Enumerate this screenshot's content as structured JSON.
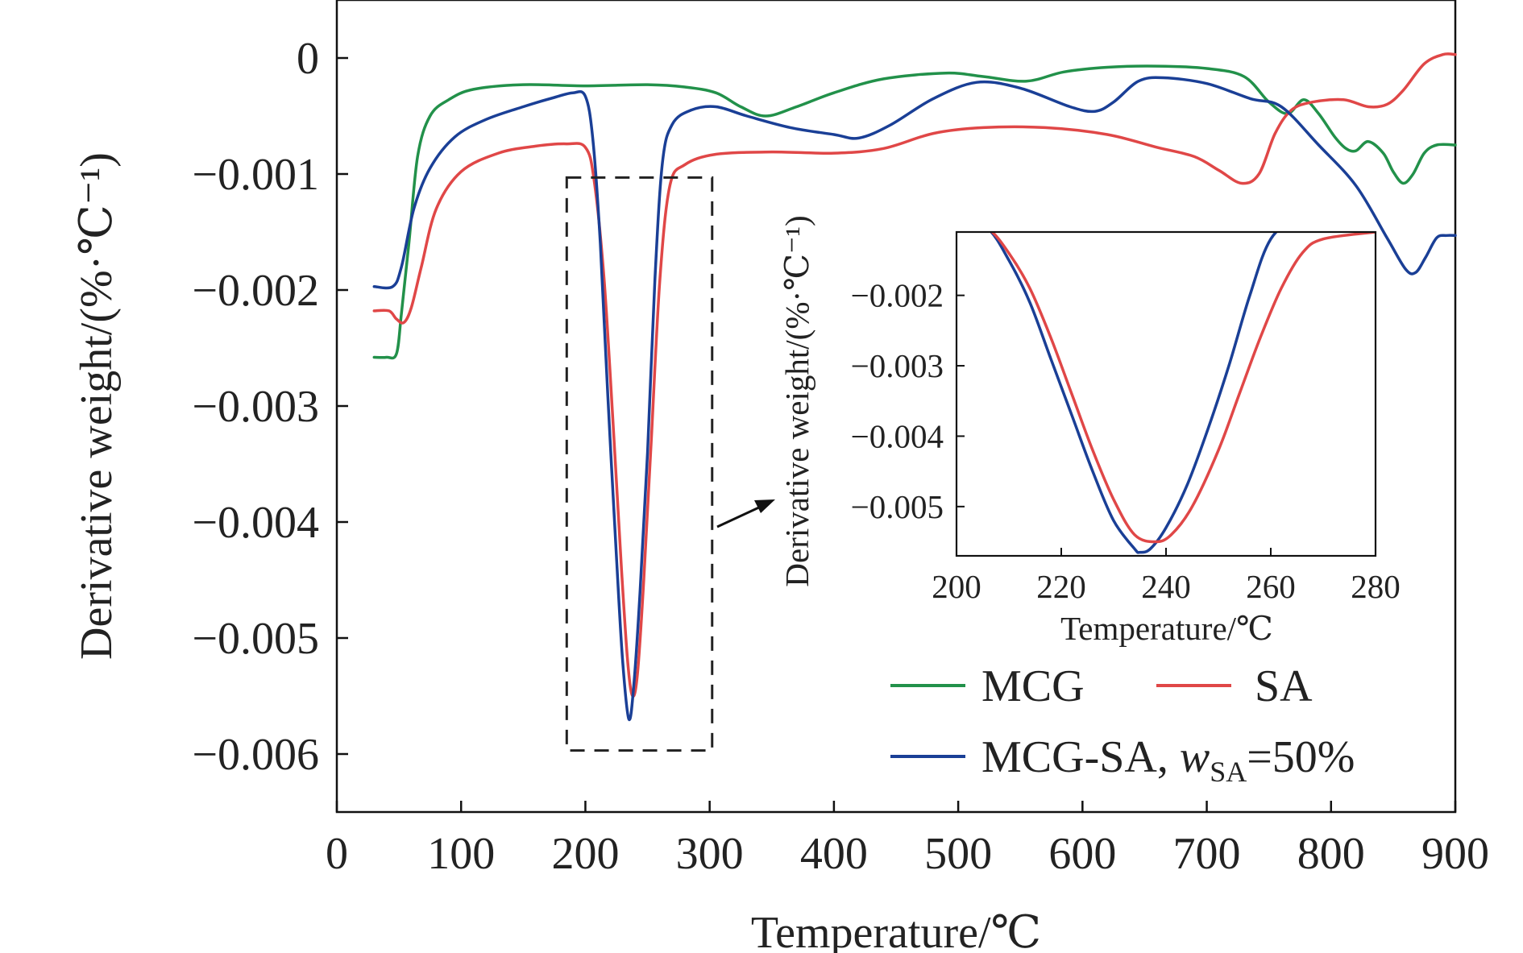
{
  "chart_data": [
    {
      "type": "line",
      "xlabel": "Temperature/℃",
      "ylabel": "Derivative weight/(%·℃⁻¹)",
      "xlim": [
        0,
        900
      ],
      "ylim": [
        -0.0065,
        0.0005
      ],
      "xticks": [
        0,
        100,
        200,
        300,
        400,
        500,
        600,
        700,
        800,
        900
      ],
      "yticks": [
        0,
        -0.001,
        -0.002,
        -0.003,
        -0.004,
        -0.005,
        -0.006
      ],
      "ytick_labels": [
        "0",
        "−0.001",
        "−0.002",
        "−0.003",
        "−0.004",
        "−0.005",
        "−0.006"
      ],
      "legend_position": "bottom-right",
      "series": [
        {
          "name": "MCG",
          "color": "#22914a",
          "points": [
            [
              30,
              -0.00258
            ],
            [
              40,
              -0.00258
            ],
            [
              48,
              -0.00255
            ],
            [
              52,
              -0.0022
            ],
            [
              58,
              -0.0016
            ],
            [
              65,
              -0.00085
            ],
            [
              75,
              -0.0005
            ],
            [
              90,
              -0.00036
            ],
            [
              110,
              -0.00027
            ],
            [
              150,
              -0.00023
            ],
            [
              200,
              -0.00024
            ],
            [
              250,
              -0.00023
            ],
            [
              280,
              -0.00025
            ],
            [
              305,
              -0.0003
            ],
            [
              325,
              -0.00042
            ],
            [
              345,
              -0.0005
            ],
            [
              370,
              -0.00042
            ],
            [
              400,
              -0.0003
            ],
            [
              440,
              -0.00018
            ],
            [
              490,
              -0.00013
            ],
            [
              520,
              -0.00016
            ],
            [
              555,
              -0.0002
            ],
            [
              585,
              -0.00012
            ],
            [
              620,
              -8e-05
            ],
            [
              660,
              -7e-05
            ],
            [
              700,
              -9e-05
            ],
            [
              730,
              -0.00016
            ],
            [
              750,
              -0.00038
            ],
            [
              765,
              -0.00048
            ],
            [
              778,
              -0.00036
            ],
            [
              790,
              -0.00048
            ],
            [
              803,
              -0.00068
            ],
            [
              812,
              -0.00078
            ],
            [
              820,
              -0.0008
            ],
            [
              830,
              -0.00072
            ],
            [
              842,
              -0.00082
            ],
            [
              850,
              -0.00098
            ],
            [
              858,
              -0.00108
            ],
            [
              866,
              -0.001
            ],
            [
              875,
              -0.00082
            ],
            [
              885,
              -0.00075
            ],
            [
              900,
              -0.00075
            ]
          ]
        },
        {
          "name": "SA",
          "color": "#e04747",
          "points": [
            [
              30,
              -0.00218
            ],
            [
              42,
              -0.00218
            ],
            [
              48,
              -0.00225
            ],
            [
              54,
              -0.00228
            ],
            [
              60,
              -0.00215
            ],
            [
              68,
              -0.0018
            ],
            [
              80,
              -0.0013
            ],
            [
              100,
              -0.00098
            ],
            [
              130,
              -0.00082
            ],
            [
              160,
              -0.00076
            ],
            [
              185,
              -0.00074
            ],
            [
              200,
              -0.00077
            ],
            [
              207,
              -0.00105
            ],
            [
              215,
              -0.0019
            ],
            [
              222,
              -0.0031
            ],
            [
              229,
              -0.0044
            ],
            [
              234,
              -0.0052
            ],
            [
              238,
              -0.0055
            ],
            [
              242,
              -0.0053
            ],
            [
              247,
              -0.0045
            ],
            [
              253,
              -0.0033
            ],
            [
              260,
              -0.0019
            ],
            [
              268,
              -0.0011
            ],
            [
              280,
              -0.00092
            ],
            [
              305,
              -0.00083
            ],
            [
              350,
              -0.00081
            ],
            [
              400,
              -0.00082
            ],
            [
              440,
              -0.00078
            ],
            [
              480,
              -0.00065
            ],
            [
              520,
              -0.0006
            ],
            [
              570,
              -0.0006
            ],
            [
              620,
              -0.00066
            ],
            [
              660,
              -0.00077
            ],
            [
              690,
              -0.00085
            ],
            [
              710,
              -0.00097
            ],
            [
              728,
              -0.00108
            ],
            [
              742,
              -0.001
            ],
            [
              755,
              -0.00065
            ],
            [
              768,
              -0.00045
            ],
            [
              785,
              -0.00038
            ],
            [
              810,
              -0.00036
            ],
            [
              830,
              -0.00042
            ],
            [
              845,
              -0.0004
            ],
            [
              858,
              -0.00028
            ],
            [
              875,
              -5e-05
            ],
            [
              890,
              3e-05
            ],
            [
              900,
              3e-05
            ]
          ]
        },
        {
          "name": "MCG-SA, wSA=50%",
          "color": "#1a3f96",
          "points": [
            [
              30,
              -0.00197
            ],
            [
              45,
              -0.00197
            ],
            [
              52,
              -0.0018
            ],
            [
              62,
              -0.0013
            ],
            [
              75,
              -0.00095
            ],
            [
              95,
              -0.00068
            ],
            [
              120,
              -0.00053
            ],
            [
              150,
              -0.00042
            ],
            [
              175,
              -0.00034
            ],
            [
              190,
              -0.0003
            ],
            [
              200,
              -0.00033
            ],
            [
              206,
              -0.0007
            ],
            [
              212,
              -0.0016
            ],
            [
              218,
              -0.0029
            ],
            [
              225,
              -0.0043
            ],
            [
              230,
              -0.0052
            ],
            [
              235,
              -0.0057
            ],
            [
              239,
              -0.0054
            ],
            [
              244,
              -0.0046
            ],
            [
              250,
              -0.0034
            ],
            [
              256,
              -0.0019
            ],
            [
              262,
              -0.0009
            ],
            [
              270,
              -0.00057
            ],
            [
              285,
              -0.00045
            ],
            [
              305,
              -0.00042
            ],
            [
              330,
              -0.0005
            ],
            [
              365,
              -0.0006
            ],
            [
              400,
              -0.00066
            ],
            [
              420,
              -0.00069
            ],
            [
              445,
              -0.00058
            ],
            [
              480,
              -0.00035
            ],
            [
              515,
              -0.00021
            ],
            [
              550,
              -0.00026
            ],
            [
              590,
              -0.00042
            ],
            [
              610,
              -0.00046
            ],
            [
              625,
              -0.00038
            ],
            [
              645,
              -0.0002
            ],
            [
              665,
              -0.00017
            ],
            [
              700,
              -0.00022
            ],
            [
              735,
              -0.00035
            ],
            [
              760,
              -0.00042
            ],
            [
              790,
              -0.00075
            ],
            [
              820,
              -0.0011
            ],
            [
              845,
              -0.00155
            ],
            [
              860,
              -0.00182
            ],
            [
              868,
              -0.00185
            ],
            [
              876,
              -0.00172
            ],
            [
              885,
              -0.00155
            ],
            [
              893,
              -0.00153
            ],
            [
              900,
              -0.00153
            ]
          ]
        }
      ]
    },
    {
      "type": "line",
      "xlabel": "Temperature/℃",
      "ylabel": "Derivative weight/(%·℃⁻¹)",
      "xlim": [
        200,
        280
      ],
      "ylim": [
        -0.0057,
        -0.0011
      ],
      "xticks": [
        200,
        220,
        240,
        260,
        280
      ],
      "yticks": [
        -0.002,
        -0.003,
        -0.004,
        -0.005
      ],
      "ytick_labels": [
        "−0.002",
        "−0.003",
        "−0.004",
        "−0.005"
      ],
      "series": [
        {
          "name": "MCG-SA, wSA=50%",
          "color": "#1a3f96",
          "points": [
            [
              200,
              -0.0008
            ],
            [
              206,
              -0.00105
            ],
            [
              210,
              -0.0015
            ],
            [
              214,
              -0.0021
            ],
            [
              218,
              -0.0029
            ],
            [
              222,
              -0.0037
            ],
            [
              226,
              -0.0045
            ],
            [
              230,
              -0.0052
            ],
            [
              234,
              -0.0056
            ],
            [
              235,
              -0.00565
            ],
            [
              237,
              -0.0056
            ],
            [
              240,
              -0.0053
            ],
            [
              244,
              -0.0047
            ],
            [
              248,
              -0.0039
            ],
            [
              252,
              -0.003
            ],
            [
              256,
              -0.002
            ],
            [
              260,
              -0.0012
            ],
            [
              266,
              -0.0008
            ]
          ]
        },
        {
          "name": "SA",
          "color": "#e04747",
          "points": [
            [
              200,
              -0.00085
            ],
            [
              206,
              -0.00105
            ],
            [
              210,
              -0.0014
            ],
            [
              214,
              -0.0019
            ],
            [
              218,
              -0.0026
            ],
            [
              222,
              -0.0034
            ],
            [
              226,
              -0.0042
            ],
            [
              230,
              -0.0049
            ],
            [
              234,
              -0.0054
            ],
            [
              238,
              -0.0055
            ],
            [
              241,
              -0.0054
            ],
            [
              245,
              -0.005
            ],
            [
              250,
              -0.0042
            ],
            [
              254,
              -0.0034
            ],
            [
              258,
              -0.0026
            ],
            [
              262,
              -0.0019
            ],
            [
              266,
              -0.0014
            ],
            [
              270,
              -0.0012
            ],
            [
              280,
              -0.0011
            ]
          ]
        }
      ]
    }
  ],
  "main_labels": {
    "xlabel": "Temperature/℃",
    "ylabel": "Derivative weight/(%·℃⁻¹)"
  },
  "inset_labels": {
    "xlabel": "Temperature/℃",
    "ylabel": "Derivative weight/(%·℃⁻¹)"
  },
  "legend": {
    "mcg": "MCG",
    "sa": "SA",
    "blend_prefix": "MCG-SA, ",
    "blend_w": "w",
    "blend_sub": "SA",
    "blend_suffix": "=50%"
  },
  "zoom_box": {
    "x_range": [
      185,
      302
    ],
    "y_range": [
      -0.00597,
      -0.00103
    ]
  }
}
